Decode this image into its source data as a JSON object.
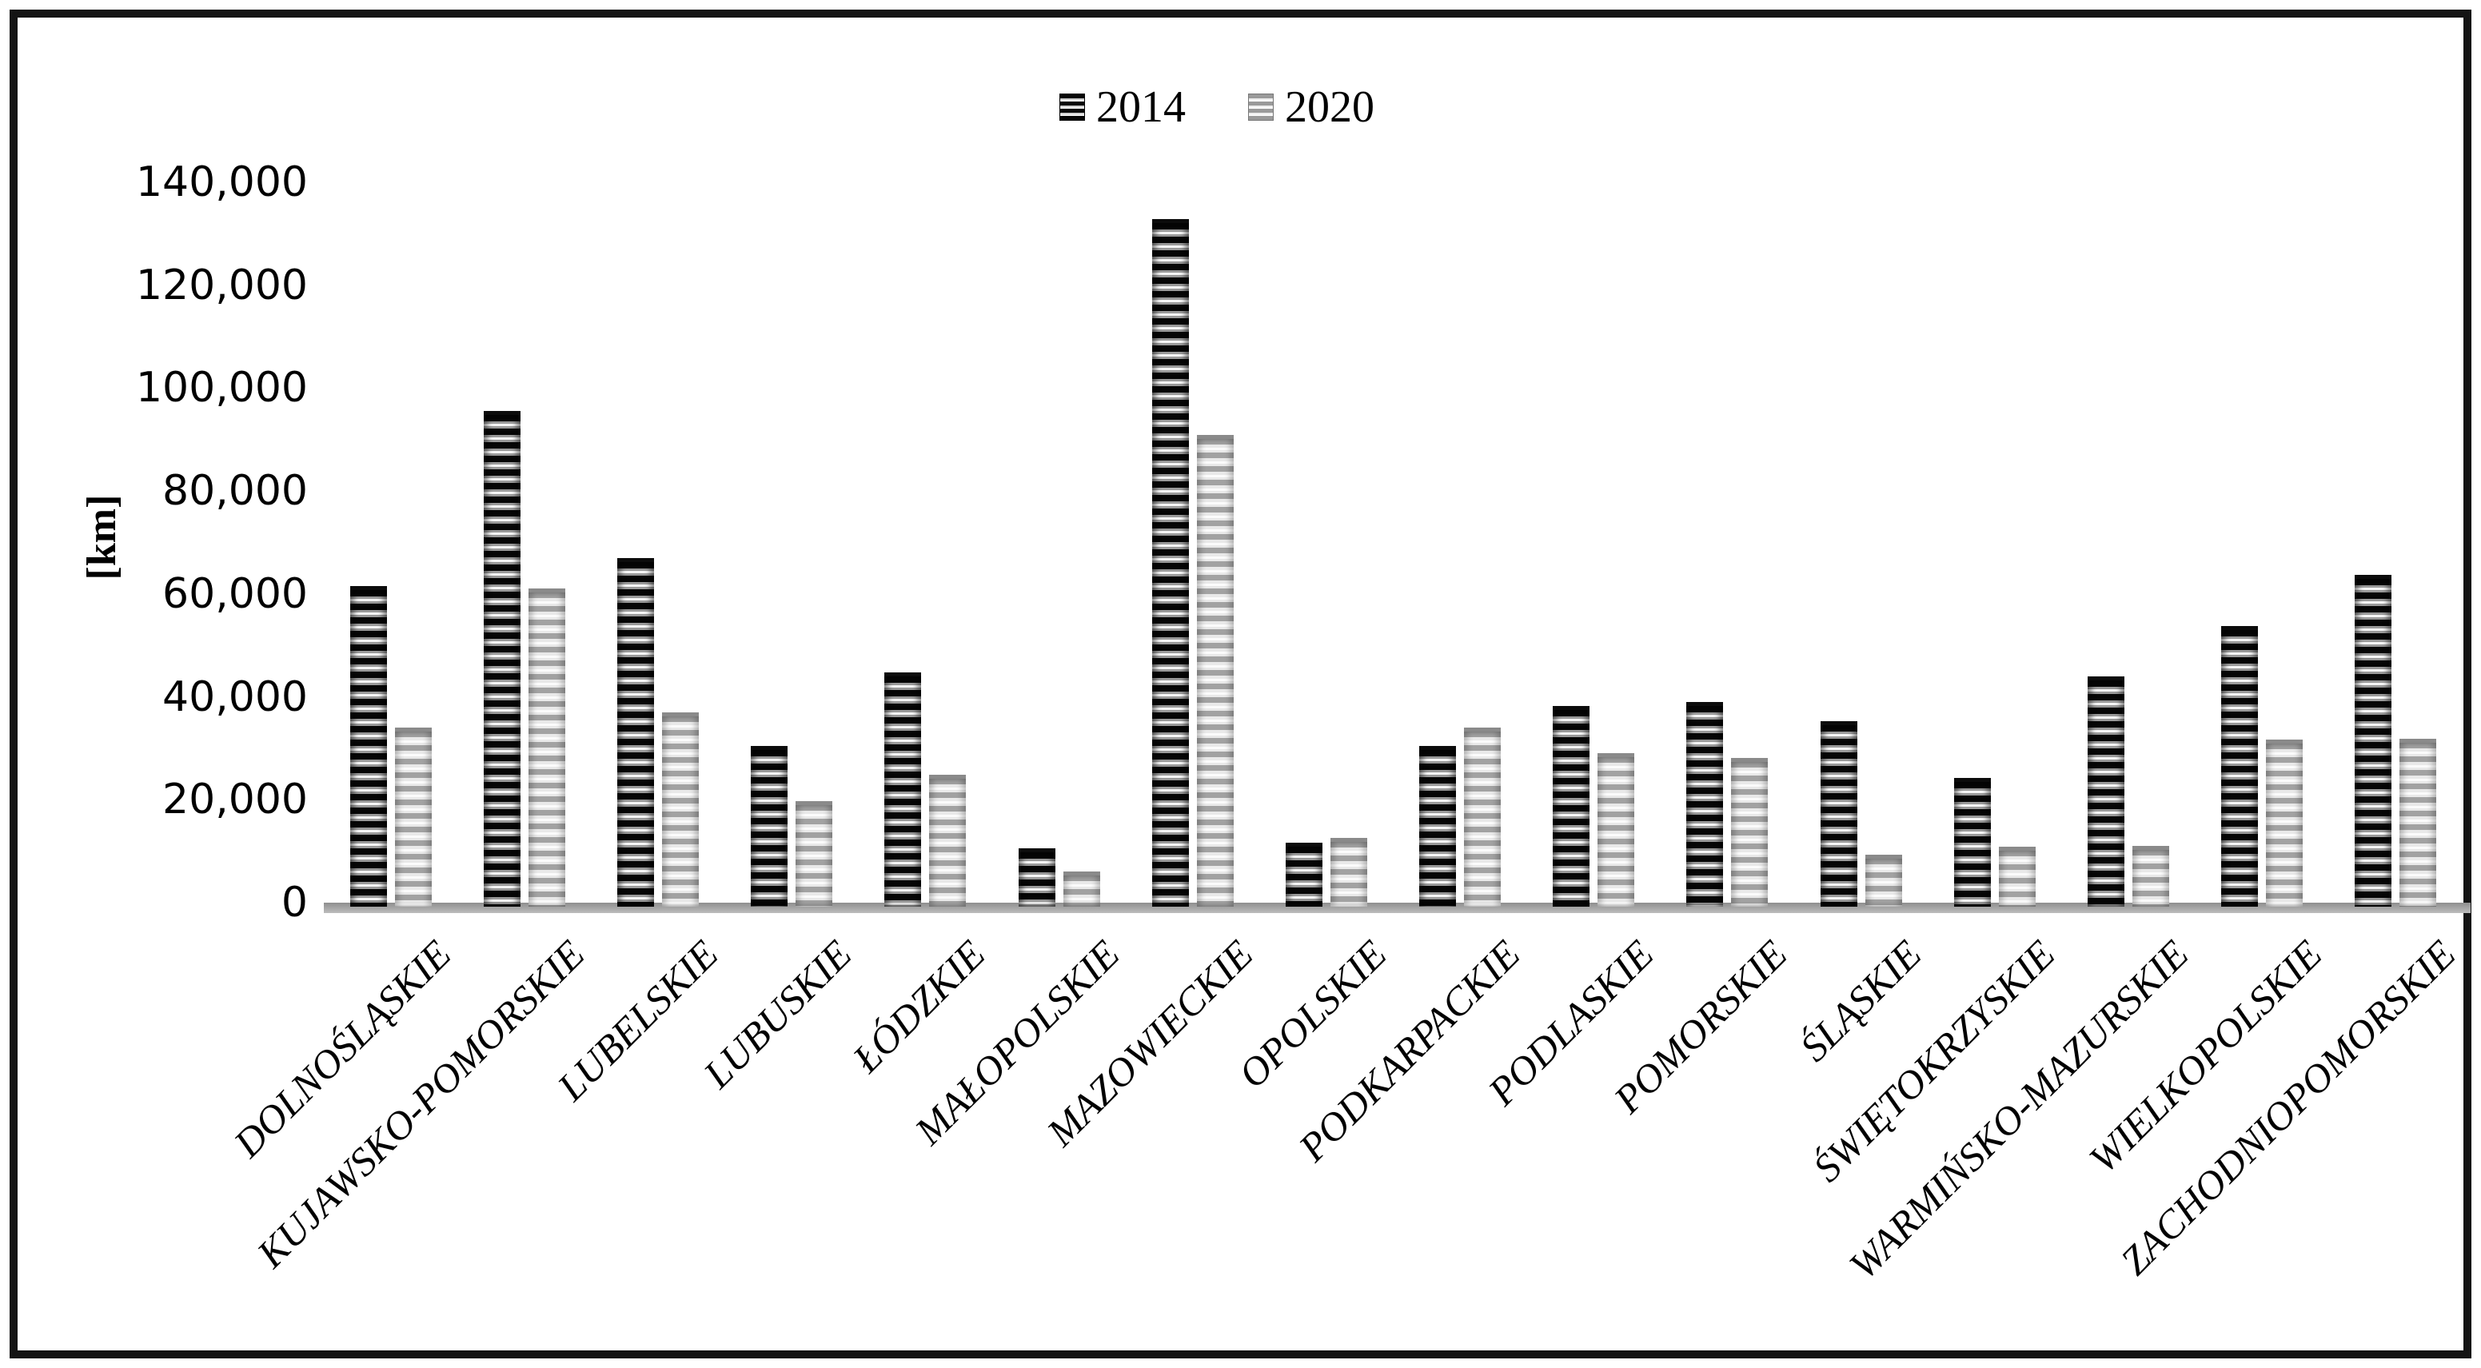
{
  "figure": {
    "background": "#ffffff",
    "border_color": "#141414"
  },
  "legend": {
    "position": "top-center",
    "items": [
      {
        "label": "2014",
        "swatch": "dark-horizontal-hatch"
      },
      {
        "label": "2020",
        "swatch": "light-horizontal-hatch"
      }
    ]
  },
  "y_axis": {
    "unit_label": "[km]",
    "min": 0,
    "max": 140000,
    "tick_step": 20000,
    "tick_labels": [
      "0",
      "20,000",
      "40,000",
      "60,000",
      "80,000",
      "100,000",
      "120,000",
      "140,000"
    ],
    "gridlines": false,
    "axis_line_color": "#a6a6a6"
  },
  "chart_data": {
    "type": "bar",
    "title": "",
    "xlabel": "",
    "ylabel": "[km]",
    "ylim": [
      0,
      140000
    ],
    "ytick_step": 20000,
    "grid": false,
    "legend_position": "top-center",
    "categories": [
      "DOLNOŚLĄSKIE",
      "KUJAWSKO-POMORSKIE",
      "LUBELSKIE",
      "LUBUSKIE",
      "ŁÓDZKIE",
      "MAŁOPOLSKIE",
      "MAZOWIECKIE",
      "OPOLSKIE",
      "PODKARPACKIE",
      "PODLASKIE",
      "POMORSKIE",
      "ŚLĄSKIE",
      "ŚWIĘTOKRZYSKIE",
      "WARMIŃSKO-MAZURSKIE",
      "WIELKOPOLSKIE",
      "ZACHODNIOPOMORSKIE"
    ],
    "series": [
      {
        "name": "2014",
        "color": "#0a0a0a",
        "pattern": "dark-horizontal-hatch",
        "values": [
          61500,
          95500,
          67000,
          30500,
          44800,
          10600,
          132900,
          11700,
          30400,
          38300,
          39000,
          35200,
          24300,
          43900,
          53700,
          63700
        ]
      },
      {
        "name": "2020",
        "color": "#b5b5b5",
        "pattern": "light-horizontal-hatch",
        "values": [
          34000,
          61100,
          37000,
          19700,
          24900,
          6100,
          90900,
          12600,
          34100,
          29000,
          28100,
          9300,
          10900,
          11000,
          31700,
          31900
        ]
      }
    ]
  }
}
